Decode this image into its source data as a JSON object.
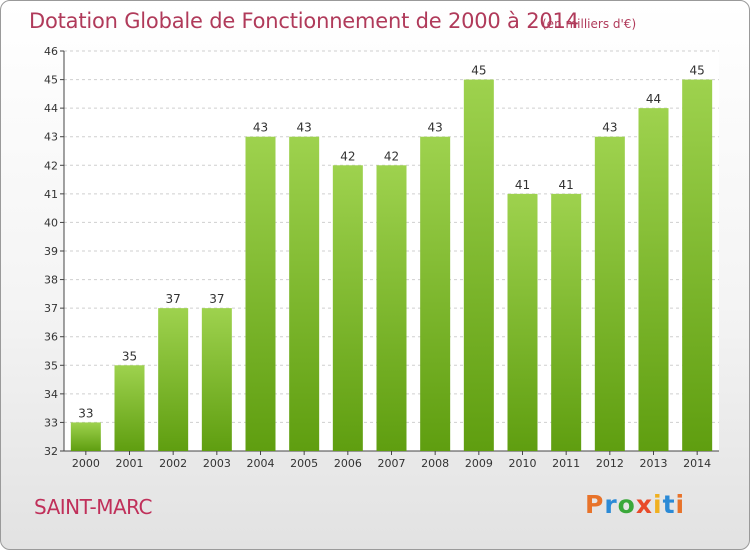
{
  "header": {
    "title": "Dotation Globale de Fonctionnement de 2000 à 2014",
    "unit": "(en milliers d'€)"
  },
  "footer": {
    "city": "SAINT-MARC",
    "logo": "Proxiti"
  },
  "colors": {
    "title": "#b03a5a",
    "bar_top": "#9ed24e",
    "bar_bottom": "#5f9e10",
    "logo_letters": [
      "#e8732a",
      "#2b8ad6",
      "#3aa83a",
      "#e84a2a",
      "#f0b020",
      "#2b8ad6",
      "#e8732a"
    ]
  },
  "chart_data": {
    "type": "bar",
    "categories": [
      "2000",
      "2001",
      "2002",
      "2003",
      "2004",
      "2005",
      "2006",
      "2007",
      "2008",
      "2009",
      "2010",
      "2011",
      "2012",
      "2013",
      "2014"
    ],
    "values": [
      33,
      35,
      37,
      37,
      43,
      43,
      42,
      42,
      43,
      45,
      41,
      41,
      43,
      44,
      45
    ],
    "yticks": [
      32,
      33,
      34,
      35,
      36,
      37,
      38,
      39,
      40,
      41,
      42,
      43,
      44,
      45,
      46
    ],
    "ylim": [
      32,
      46
    ],
    "grid": true,
    "title": "Dotation Globale de Fonctionnement de 2000 à 2014",
    "xlabel": "",
    "ylabel": ""
  }
}
